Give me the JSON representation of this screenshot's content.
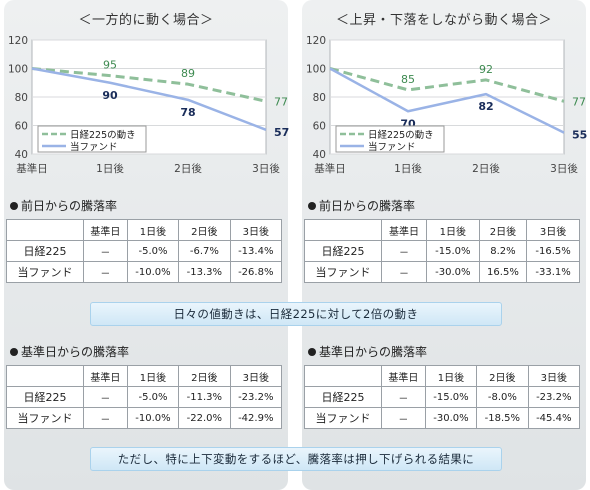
{
  "panels": [
    {
      "title": "＜一方的に動く場合＞",
      "chart_data": {
        "type": "line",
        "categories": [
          "基準日",
          "1日後",
          "2日後",
          "3日後"
        ],
        "ylim": [
          40,
          120
        ],
        "yticks": [
          40,
          60,
          80,
          100,
          120
        ],
        "grid": true,
        "legend_position": "bottom-left",
        "series": [
          {
            "name": "日経225の動き",
            "values": [
              100,
              95,
              89,
              77
            ],
            "color": "#8fbf9a",
            "dashed": true,
            "label_color": "#3d8a50"
          },
          {
            "name": "当ファンド",
            "values": [
              100,
              90,
              78,
              57
            ],
            "color": "#9ab3e6",
            "dashed": false,
            "label_color": "#1a2d5a"
          }
        ]
      },
      "section1": "前日からの騰落率",
      "section2": "基準日からの騰落率",
      "headers": [
        "",
        "基準日",
        "1日後",
        "2日後",
        "3日後"
      ],
      "table1": [
        [
          "日経225",
          "－",
          "-5.0%",
          "-6.7%",
          "-13.4%"
        ],
        [
          "当ファンド",
          "－",
          "-10.0%",
          "-13.3%",
          "-26.8%"
        ]
      ],
      "table2": [
        [
          "日経225",
          "－",
          "-5.0%",
          "-11.3%",
          "-23.2%"
        ],
        [
          "当ファンド",
          "－",
          "-10.0%",
          "-22.0%",
          "-42.9%"
        ]
      ]
    },
    {
      "title": "＜上昇・下落をしながら動く場合＞",
      "chart_data": {
        "type": "line",
        "categories": [
          "基準日",
          "1日後",
          "2日後",
          "3日後"
        ],
        "ylim": [
          40,
          120
        ],
        "yticks": [
          40,
          60,
          80,
          100,
          120
        ],
        "grid": true,
        "legend_position": "bottom-left",
        "series": [
          {
            "name": "日経225の動き",
            "values": [
              100,
              85,
              92,
              77
            ],
            "color": "#8fbf9a",
            "dashed": true,
            "label_color": "#3d8a50"
          },
          {
            "name": "当ファンド",
            "values": [
              100,
              70,
              82,
              55
            ],
            "color": "#9ab3e6",
            "dashed": false,
            "label_color": "#1a2d5a"
          }
        ]
      },
      "section1": "前日からの騰落率",
      "section2": "基準日からの騰落率",
      "headers": [
        "",
        "基準日",
        "1日後",
        "2日後",
        "3日後"
      ],
      "table1": [
        [
          "日経225",
          "－",
          "-15.0%",
          "8.2%",
          "-16.5%"
        ],
        [
          "当ファンド",
          "－",
          "-30.0%",
          "16.5%",
          "-33.1%"
        ]
      ],
      "table2": [
        [
          "日経225",
          "－",
          "-15.0%",
          "-8.0%",
          "-23.2%"
        ],
        [
          "当ファンド",
          "－",
          "-30.0%",
          "-18.5%",
          "-45.4%"
        ]
      ]
    }
  ],
  "banner1": "日々の値動きは、日経225に対して2倍の動き",
  "banner2": "ただし、特に上下変動をするほど、騰落率は押し下げられる結果に"
}
